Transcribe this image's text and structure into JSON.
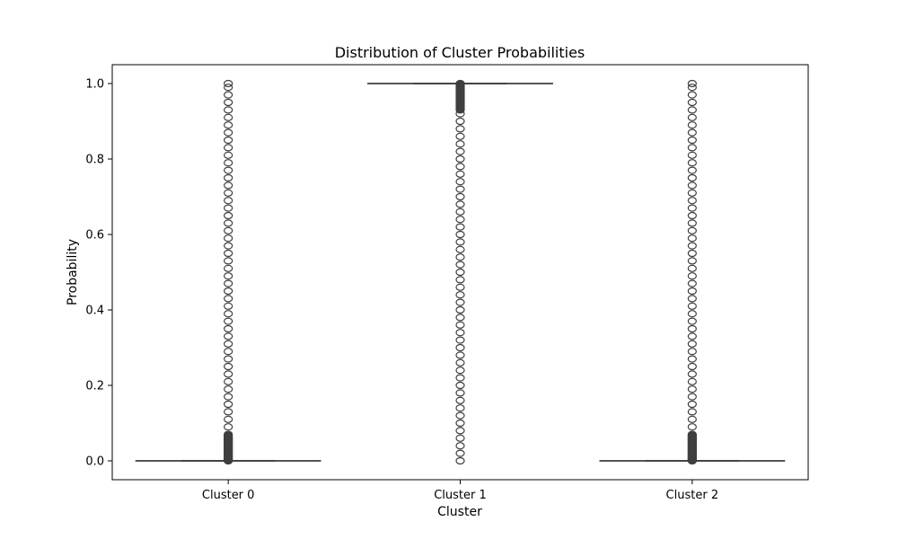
{
  "chart_data": {
    "type": "box",
    "title": "Distribution of Cluster Probabilities",
    "xlabel": "Cluster",
    "ylabel": "Probability",
    "ylim": [
      -0.05,
      1.05
    ],
    "yticks": [
      0.0,
      0.2,
      0.4,
      0.6,
      0.8,
      1.0
    ],
    "ytick_labels": [
      "0.0",
      "0.2",
      "0.4",
      "0.6",
      "0.8",
      "1.0"
    ],
    "categories": [
      "Cluster 0",
      "Cluster 1",
      "Cluster 2"
    ],
    "grid": false,
    "box_color": "#3f3f3f",
    "series": [
      {
        "category": "Cluster 0",
        "whisker_low": 0.0,
        "q1": 0.0,
        "median": 0.0,
        "q3": 0.0,
        "whisker_high": 0.0,
        "outliers_dense_range": [
          0.0,
          0.07
        ],
        "outliers": [
          0.09,
          0.11,
          0.13,
          0.15,
          0.17,
          0.19,
          0.21,
          0.23,
          0.25,
          0.27,
          0.29,
          0.31,
          0.33,
          0.35,
          0.37,
          0.39,
          0.41,
          0.43,
          0.45,
          0.47,
          0.49,
          0.51,
          0.53,
          0.55,
          0.57,
          0.59,
          0.61,
          0.63,
          0.65,
          0.67,
          0.69,
          0.71,
          0.73,
          0.75,
          0.77,
          0.79,
          0.81,
          0.83,
          0.85,
          0.87,
          0.89,
          0.91,
          0.93,
          0.95,
          0.97,
          0.99,
          1.0
        ]
      },
      {
        "category": "Cluster 1",
        "whisker_low": 1.0,
        "q1": 1.0,
        "median": 1.0,
        "q3": 1.0,
        "whisker_high": 1.0,
        "outliers_dense_range": [
          0.93,
          1.0
        ],
        "outliers": [
          0.0,
          0.02,
          0.04,
          0.06,
          0.08,
          0.1,
          0.12,
          0.14,
          0.16,
          0.18,
          0.2,
          0.22,
          0.24,
          0.26,
          0.28,
          0.3,
          0.32,
          0.34,
          0.36,
          0.38,
          0.4,
          0.42,
          0.44,
          0.46,
          0.48,
          0.5,
          0.52,
          0.54,
          0.56,
          0.58,
          0.6,
          0.62,
          0.64,
          0.66,
          0.68,
          0.7,
          0.72,
          0.74,
          0.76,
          0.78,
          0.8,
          0.82,
          0.84,
          0.86,
          0.88,
          0.9,
          0.92
        ]
      },
      {
        "category": "Cluster 2",
        "whisker_low": 0.0,
        "q1": 0.0,
        "median": 0.0,
        "q3": 0.0,
        "whisker_high": 0.0,
        "outliers_dense_range": [
          0.0,
          0.07
        ],
        "outliers": [
          0.09,
          0.11,
          0.13,
          0.15,
          0.17,
          0.19,
          0.21,
          0.23,
          0.25,
          0.27,
          0.29,
          0.31,
          0.33,
          0.35,
          0.37,
          0.39,
          0.41,
          0.43,
          0.45,
          0.47,
          0.49,
          0.51,
          0.53,
          0.55,
          0.57,
          0.59,
          0.61,
          0.63,
          0.65,
          0.67,
          0.69,
          0.71,
          0.73,
          0.75,
          0.77,
          0.79,
          0.81,
          0.83,
          0.85,
          0.87,
          0.89,
          0.91,
          0.93,
          0.95,
          0.97,
          0.99,
          1.0
        ]
      }
    ]
  }
}
